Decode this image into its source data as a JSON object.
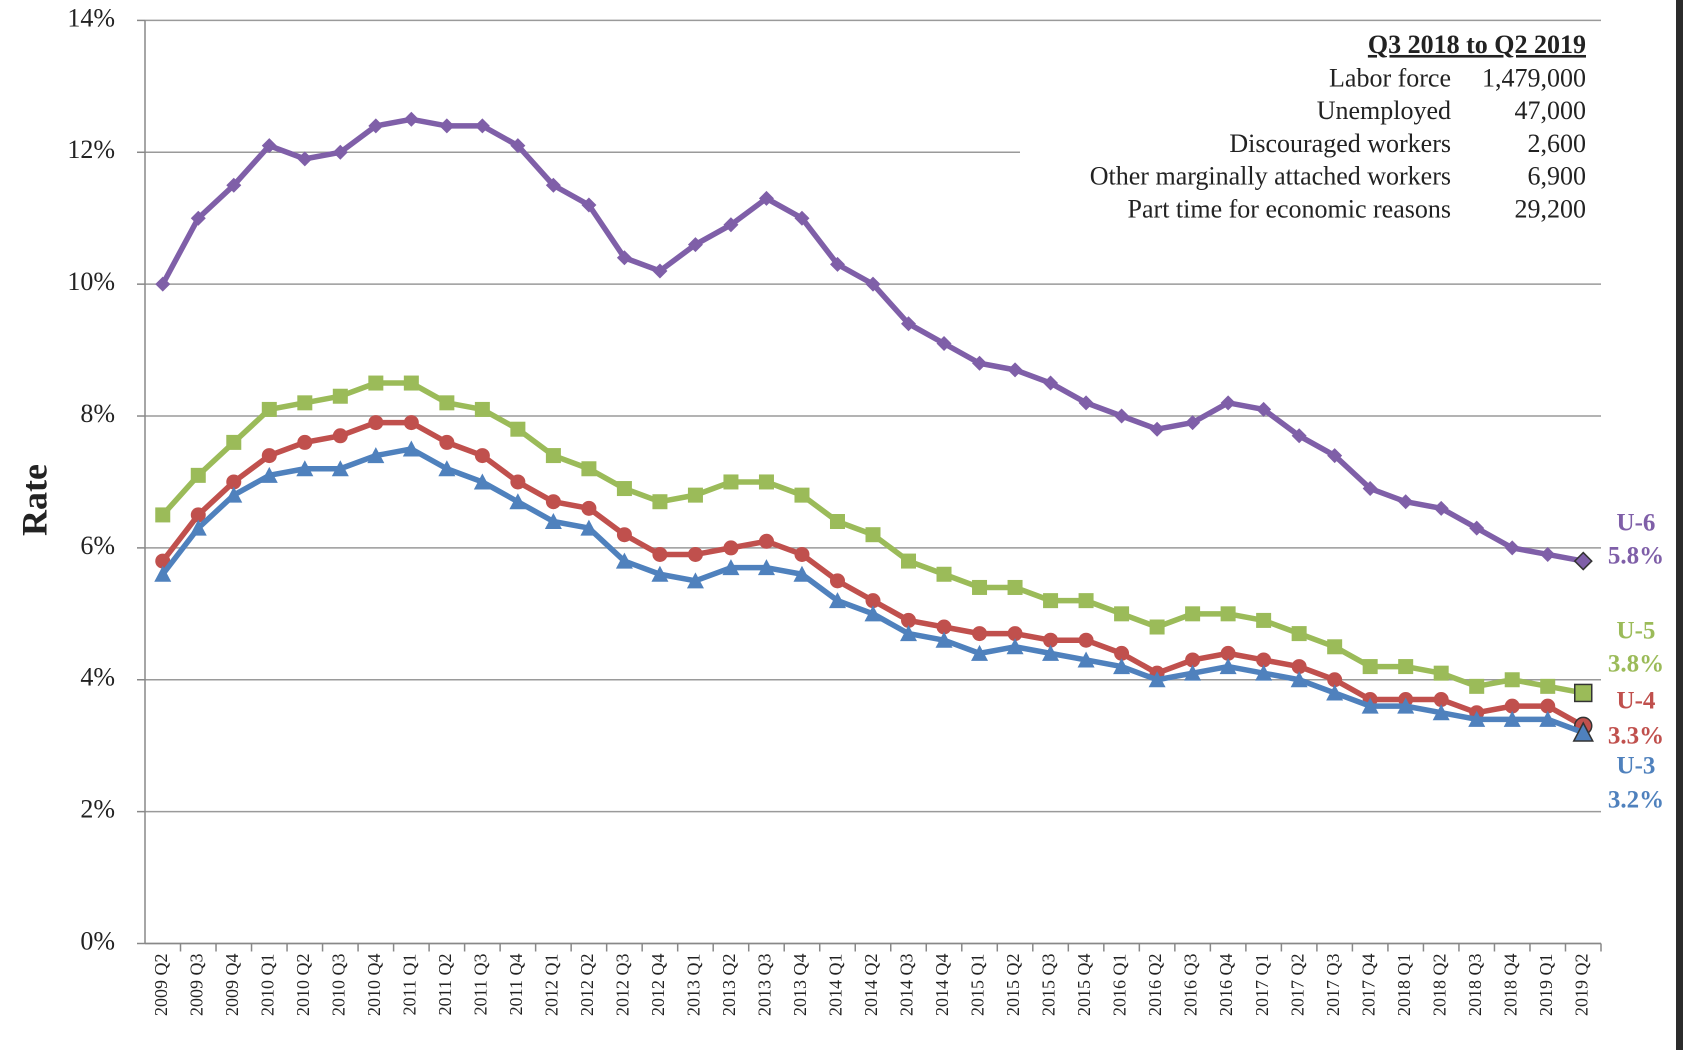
{
  "chart_data": {
    "type": "line",
    "y_label": "Rate",
    "categories": [
      "2009 Q2",
      "2009 Q3",
      "2009 Q4",
      "2010 Q1",
      "2010 Q2",
      "2010 Q3",
      "2010 Q4",
      "2011 Q1",
      "2011 Q2",
      "2011 Q3",
      "2011 Q4",
      "2012 Q1",
      "2012 Q2",
      "2012 Q3",
      "2012 Q4",
      "2013 Q1",
      "2013 Q2",
      "2013 Q3",
      "2013 Q4",
      "2014 Q1",
      "2014 Q2",
      "2014 Q3",
      "2014 Q4",
      "2015 Q1",
      "2015 Q2",
      "2015 Q3",
      "2015 Q4",
      "2016 Q1",
      "2016 Q2",
      "2016 Q3",
      "2016 Q4",
      "2017 Q1",
      "2017 Q2",
      "2017 Q3",
      "2017 Q4",
      "2018 Q1",
      "2018 Q2",
      "2018 Q3",
      "2018 Q4",
      "2019 Q1",
      "2019 Q2"
    ],
    "series": [
      {
        "name": "U-6",
        "color": "#7f5fa8",
        "marker": "diamond",
        "values": [
          10.0,
          11.0,
          11.5,
          12.1,
          11.9,
          12.0,
          12.4,
          12.5,
          12.4,
          12.4,
          12.1,
          11.5,
          11.2,
          10.4,
          10.2,
          10.6,
          10.9,
          11.3,
          11.0,
          10.3,
          10.0,
          9.4,
          9.1,
          8.8,
          8.7,
          8.5,
          8.2,
          8.0,
          7.8,
          7.9,
          8.2,
          8.1,
          7.7,
          7.4,
          6.9,
          6.7,
          6.6,
          6.3,
          6.0,
          5.9,
          5.8
        ],
        "value_labels": [
          null,
          null,
          null,
          null,
          null,
          null,
          null,
          null,
          null,
          null,
          null,
          null,
          null,
          null,
          null,
          null,
          null,
          null,
          null,
          null,
          null,
          null,
          null,
          null,
          null,
          null,
          null,
          null,
          null,
          null,
          null,
          null,
          null,
          null,
          null,
          null,
          null,
          null,
          null,
          null,
          "5.8%"
        ]
      },
      {
        "name": "U-5",
        "color": "#9bbb59",
        "marker": "square",
        "values": [
          6.5,
          7.1,
          7.6,
          8.1,
          8.2,
          8.3,
          8.5,
          8.5,
          8.2,
          8.1,
          7.8,
          7.4,
          7.2,
          6.9,
          6.7,
          6.8,
          7.0,
          7.0,
          6.8,
          6.4,
          6.2,
          5.8,
          5.6,
          5.4,
          5.4,
          5.2,
          5.2,
          5.0,
          4.8,
          5.0,
          5.0,
          4.9,
          4.7,
          4.5,
          4.2,
          4.2,
          4.1,
          3.9,
          4.0,
          3.9,
          3.8
        ],
        "value_labels": [
          null,
          null,
          null,
          null,
          null,
          null,
          null,
          null,
          null,
          null,
          null,
          null,
          null,
          null,
          null,
          null,
          null,
          null,
          null,
          null,
          null,
          null,
          null,
          null,
          null,
          null,
          null,
          null,
          null,
          null,
          null,
          null,
          null,
          null,
          null,
          null,
          null,
          null,
          null,
          null,
          "3.8%"
        ]
      },
      {
        "name": "U-4",
        "color": "#c0504d",
        "marker": "circle",
        "values": [
          5.8,
          6.5,
          7.0,
          7.4,
          7.6,
          7.7,
          7.9,
          7.9,
          7.6,
          7.4,
          7.0,
          6.7,
          6.6,
          6.2,
          5.9,
          5.9,
          6.0,
          6.1,
          5.9,
          5.5,
          5.2,
          4.9,
          4.8,
          4.7,
          4.7,
          4.6,
          4.6,
          4.4,
          4.1,
          4.3,
          4.4,
          4.3,
          4.2,
          4.0,
          3.7,
          3.7,
          3.7,
          3.5,
          3.6,
          3.6,
          3.3
        ],
        "value_labels": [
          null,
          null,
          null,
          null,
          null,
          null,
          null,
          null,
          null,
          null,
          null,
          null,
          null,
          null,
          null,
          null,
          null,
          null,
          null,
          null,
          null,
          null,
          null,
          null,
          null,
          null,
          null,
          null,
          null,
          null,
          null,
          null,
          null,
          null,
          null,
          null,
          null,
          null,
          null,
          null,
          "3.3%"
        ]
      },
      {
        "name": "U-3",
        "color": "#4f81bd",
        "marker": "triangle",
        "values": [
          5.6,
          6.3,
          6.8,
          7.1,
          7.2,
          7.2,
          7.4,
          7.5,
          7.2,
          7.0,
          6.7,
          6.4,
          6.3,
          5.8,
          5.6,
          5.5,
          5.7,
          5.7,
          5.6,
          5.2,
          5.0,
          4.7,
          4.6,
          4.4,
          4.5,
          4.4,
          4.3,
          4.2,
          4.0,
          4.1,
          4.2,
          4.1,
          4.0,
          3.8,
          3.6,
          3.6,
          3.5,
          3.4,
          3.4,
          3.4,
          3.2
        ],
        "value_labels": [
          null,
          null,
          null,
          null,
          null,
          null,
          null,
          null,
          null,
          null,
          null,
          null,
          null,
          null,
          null,
          null,
          null,
          null,
          null,
          null,
          null,
          null,
          null,
          null,
          null,
          null,
          null,
          null,
          null,
          null,
          null,
          null,
          null,
          null,
          null,
          null,
          null,
          null,
          null,
          null,
          "3.2%"
        ]
      }
    ],
    "ylim": [
      0,
      14
    ],
    "yticks": [
      {
        "value": 0,
        "label": "0%"
      },
      {
        "value": 2,
        "label": "2%"
      },
      {
        "value": 4,
        "label": "4%"
      },
      {
        "value": 6,
        "label": "6%"
      },
      {
        "value": 8,
        "label": "8%"
      },
      {
        "value": 10,
        "label": "10%"
      },
      {
        "value": 12,
        "label": "12%"
      },
      {
        "value": 14,
        "label": "14%"
      }
    ],
    "grid": true,
    "annotation": {
      "title": "Q3 2018 to Q2 2019",
      "rows": [
        [
          "Labor force",
          "1,479,000"
        ],
        [
          "Unemployed",
          "47,000"
        ],
        [
          "Discouraged workers",
          "2,600"
        ],
        [
          "Other marginally attached workers",
          "6,900"
        ],
        [
          "Part time for economic reasons",
          "29,200"
        ]
      ]
    }
  }
}
